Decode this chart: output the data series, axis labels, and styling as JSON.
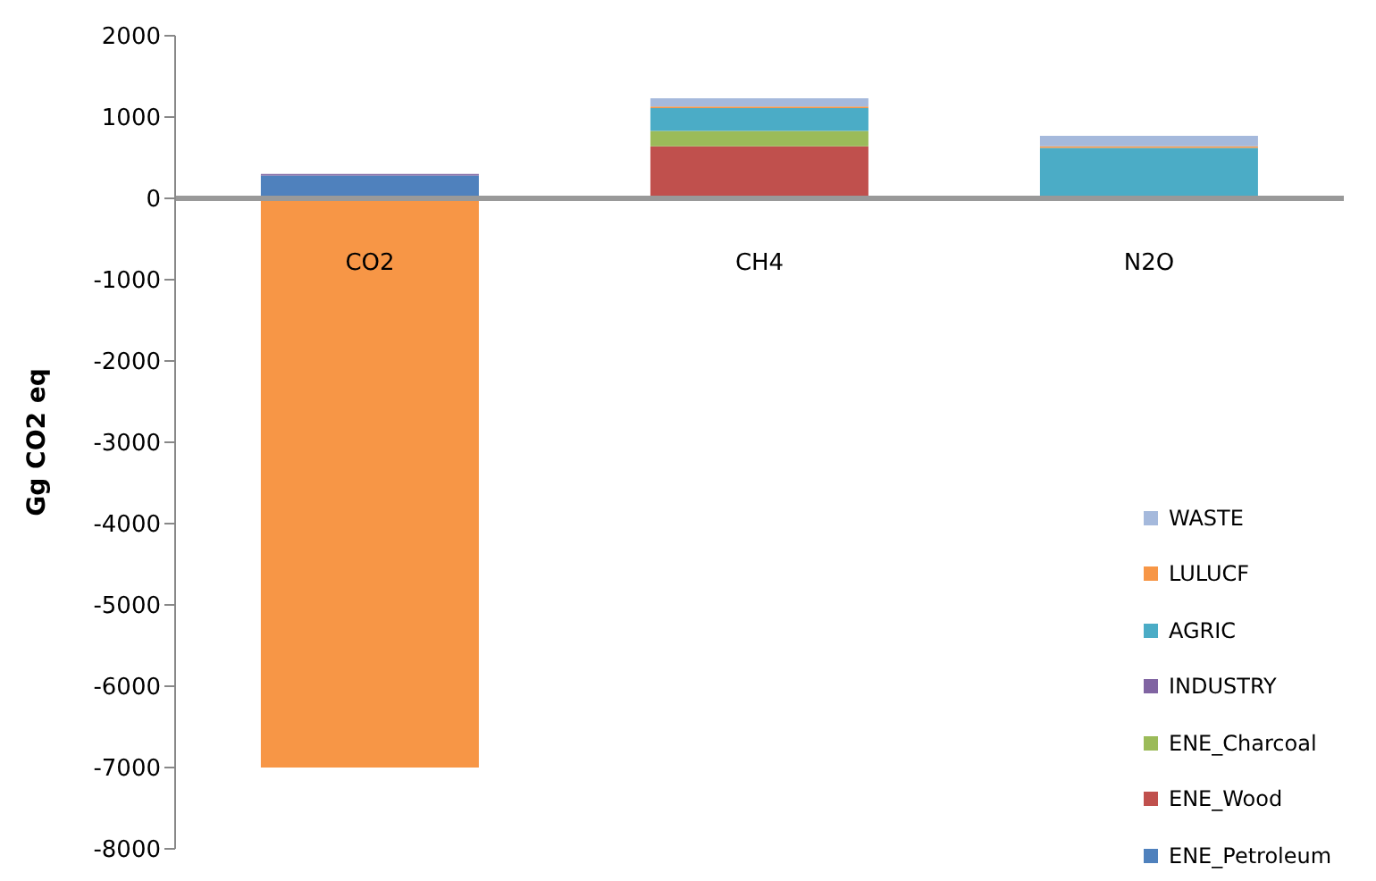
{
  "chart_data": {
    "type": "bar",
    "stacked": true,
    "ylabel": "Gg CO2 eq",
    "categories": [
      "CO2",
      "CH4",
      "N2O"
    ],
    "ylim": [
      -8000,
      2000
    ],
    "yticks": [
      -8000,
      -7000,
      -6000,
      -5000,
      -4000,
      -3000,
      -2000,
      -1000,
      0,
      1000,
      2000
    ],
    "legend": "bottom right",
    "series": [
      {
        "name": "ENE_Petroleum",
        "color": "#4f81bd",
        "values": [
          280,
          0,
          0
        ]
      },
      {
        "name": "ENE_Wood",
        "color": "#c0504d",
        "values": [
          0,
          640,
          0
        ]
      },
      {
        "name": "ENE_Charcoal",
        "color": "#9bbb59",
        "values": [
          0,
          190,
          0
        ]
      },
      {
        "name": "INDUSTRY",
        "color": "#8064a2",
        "values": [
          20,
          0,
          0
        ]
      },
      {
        "name": "AGRIC",
        "color": "#4bacc6",
        "values": [
          0,
          280,
          620
        ]
      },
      {
        "name": "LULUCF",
        "color": "#f79646",
        "values": [
          -7000,
          20,
          20
        ]
      },
      {
        "name": "WASTE",
        "color": "#a5b9dc",
        "values": [
          0,
          100,
          130
        ]
      }
    ]
  }
}
